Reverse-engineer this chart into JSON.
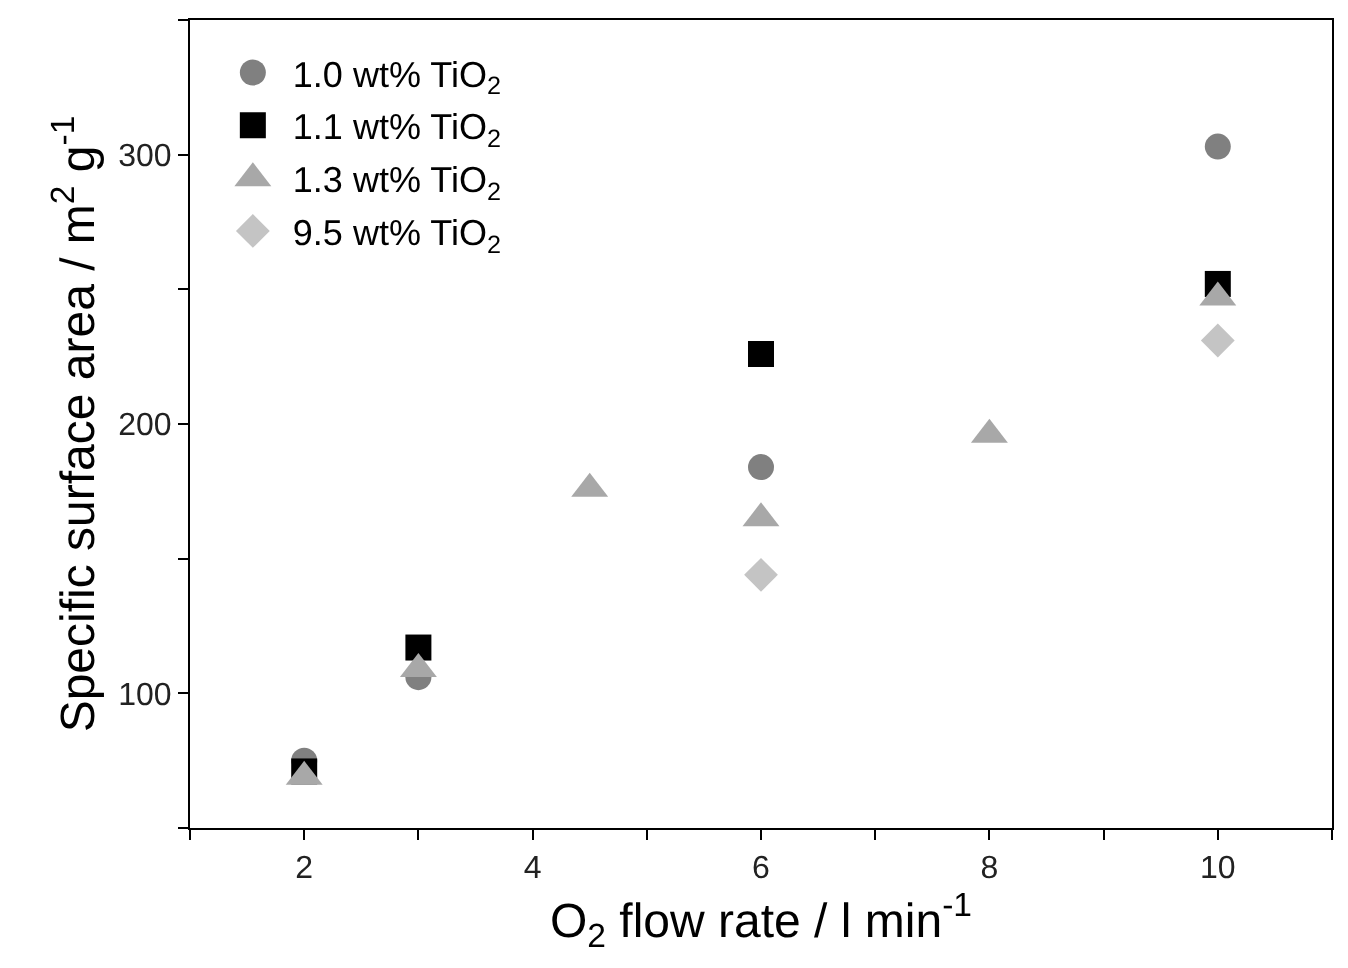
{
  "chart_data": {
    "type": "scatter",
    "xlabel": "O$_{2}$ flow rate / l min$^{-1}$",
    "ylabel": "Specific surface area / m$^{2}$ g$^{-1}$",
    "xlim": [
      1,
      11
    ],
    "xticks": [
      {
        "value": 1,
        "label": null
      },
      2,
      {
        "value": 3,
        "label": null
      },
      4,
      {
        "value": 5,
        "label": null
      },
      6,
      {
        "value": 7,
        "label": null
      },
      8,
      {
        "value": 9,
        "label": null
      },
      10,
      {
        "value": 11,
        "label": null
      }
    ],
    "ylim": [
      50,
      350
    ],
    "yticks": [
      {
        "value": 50,
        "label": null
      },
      100,
      {
        "value": 150,
        "label": null
      },
      200,
      {
        "value": 250,
        "label": null
      },
      300,
      {
        "value": 350,
        "label": null
      }
    ],
    "legend": "top left",
    "series": [
      {
        "name": "1.0 wt% TiO$_{2}$",
        "color": "#808080",
        "marker": "circle",
        "x": [
          2,
          3,
          6,
          10
        ],
        "values": [
          75,
          106,
          184,
          303
        ]
      },
      {
        "name": "1.1 wt% TiO$_{2}$",
        "color": "#000000",
        "marker": "square",
        "x": [
          2,
          3,
          6,
          10
        ],
        "values": [
          71,
          117,
          226,
          252
        ]
      },
      {
        "name": "1.3 wt% TiO$_{2}$",
        "color": "#a8a8a8",
        "marker": "triangle",
        "x": [
          2,
          3,
          4.5,
          6,
          8,
          10
        ],
        "values": [
          69,
          109,
          176,
          165,
          196,
          247
        ]
      },
      {
        "name": "9.5 wt% TiO$_{2}$",
        "color": "#c4c4c4",
        "marker": "diamond",
        "x": [
          6,
          10
        ],
        "values": [
          144,
          231
        ]
      }
    ]
  }
}
